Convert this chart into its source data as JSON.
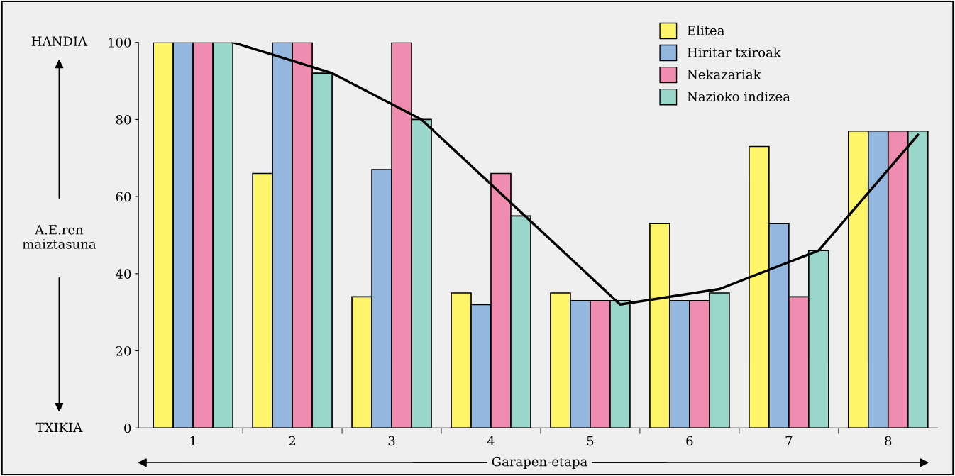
{
  "chart_data": {
    "type": "bar",
    "xlabel": "Garapen-etapa",
    "ylabel": "A.E.ren\nmaiztasuna",
    "x": [
      1,
      2,
      3,
      4,
      5,
      6,
      7,
      8
    ],
    "series": [
      {
        "name": "Elitea",
        "color": "#fff56a",
        "values": [
          100,
          66,
          34,
          35,
          35,
          53,
          73,
          77
        ]
      },
      {
        "name": "Hiritar txiroak",
        "color": "#94b7e0",
        "values": [
          100,
          100,
          67,
          32,
          33,
          33,
          53,
          77
        ]
      },
      {
        "name": "Nekazariak",
        "color": "#f08cb0",
        "values": [
          100,
          100,
          100,
          66,
          33,
          33,
          34,
          77
        ]
      },
      {
        "name": "Nazioko indizea",
        "color": "#9ad6c9",
        "values": [
          100,
          92,
          80,
          55,
          33,
          35,
          46,
          77
        ]
      },
      {
        "type": "line",
        "color": "#000000",
        "x": [
          1.4,
          2.4,
          3.3,
          5.3,
          6.3,
          7.3,
          8.3
        ],
        "values": [
          100,
          92,
          80,
          32,
          36,
          46,
          76
        ]
      }
    ],
    "xlim": [
      0.45,
      8.5
    ],
    "xticks": [
      1,
      2,
      3,
      4,
      5,
      6,
      7,
      8
    ],
    "ylim": [
      0,
      100
    ],
    "yticks": [
      0,
      20,
      40,
      60,
      80,
      100
    ],
    "annotations": [
      "HANDIA",
      "TXIKIA"
    ],
    "grid": false,
    "legend": "top right",
    "marker": "none",
    "line_style": "solid"
  }
}
